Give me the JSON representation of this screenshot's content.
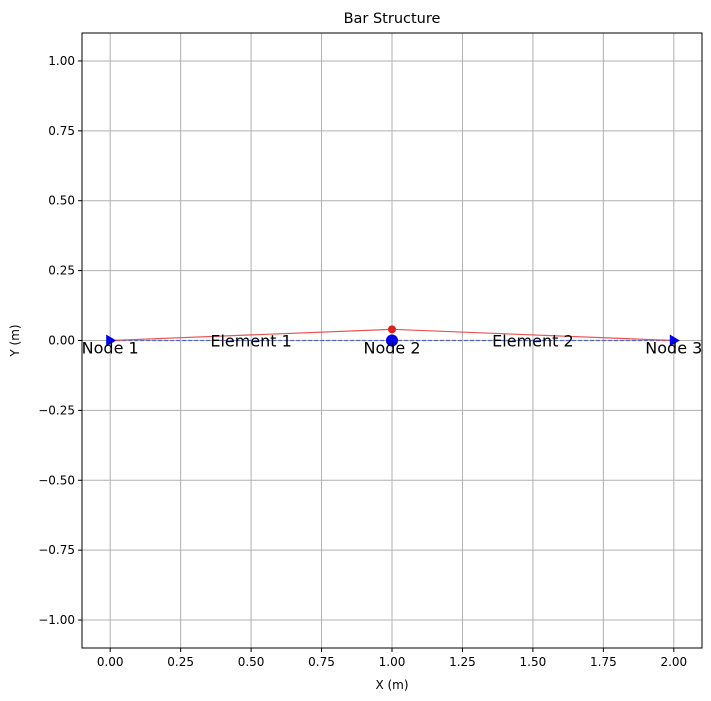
{
  "chart_data": {
    "type": "line",
    "title": "Bar Structure",
    "xlabel": "X (m)",
    "ylabel": "Y (m)",
    "xlim": [
      -0.1,
      2.1
    ],
    "ylim": [
      -1.1,
      1.1
    ],
    "xticks": [
      0.0,
      0.25,
      0.5,
      0.75,
      1.0,
      1.25,
      1.5,
      1.75,
      2.0
    ],
    "yticks": [
      -1.0,
      -0.75,
      -0.5,
      -0.25,
      0.0,
      0.25,
      0.5,
      0.75,
      1.0
    ],
    "xtick_labels": [
      "0.00",
      "0.25",
      "0.50",
      "0.75",
      "1.00",
      "1.25",
      "1.50",
      "1.75",
      "2.00"
    ],
    "ytick_labels": [
      "−1.00",
      "−0.75",
      "−0.50",
      "−0.25",
      "0.00",
      "0.25",
      "0.50",
      "0.75",
      "1.00"
    ],
    "grid": true,
    "series": [
      {
        "role": "original",
        "color": "#4a5fd0",
        "style": "dashed",
        "x": [
          0.0,
          1.0,
          2.0
        ],
        "y": [
          0.0,
          0.0,
          0.0
        ]
      },
      {
        "role": "deformed",
        "color": "#e84040",
        "style": "solid",
        "x": [
          0.0,
          1.0,
          2.0
        ],
        "y": [
          0.0,
          0.04,
          0.0
        ]
      }
    ],
    "nodes": [
      {
        "label": "Node 1",
        "x": 0.0,
        "y": 0.0,
        "marker": "triangle"
      },
      {
        "label": "Node 2",
        "x": 1.0,
        "y": 0.0,
        "marker": "circle"
      },
      {
        "label": "Node 3",
        "x": 2.0,
        "y": 0.0,
        "marker": "triangle"
      }
    ],
    "deformed_markers": [
      {
        "x": 1.0,
        "y": 0.04
      }
    ],
    "element_labels": [
      {
        "label": "Element 1",
        "x": 0.5,
        "y": 0.0
      },
      {
        "label": "Element 2",
        "x": 1.5,
        "y": 0.0
      }
    ],
    "colors": {
      "node": "#0000ee",
      "deformed": "#e02020",
      "grid": "#b0b0b0"
    }
  }
}
